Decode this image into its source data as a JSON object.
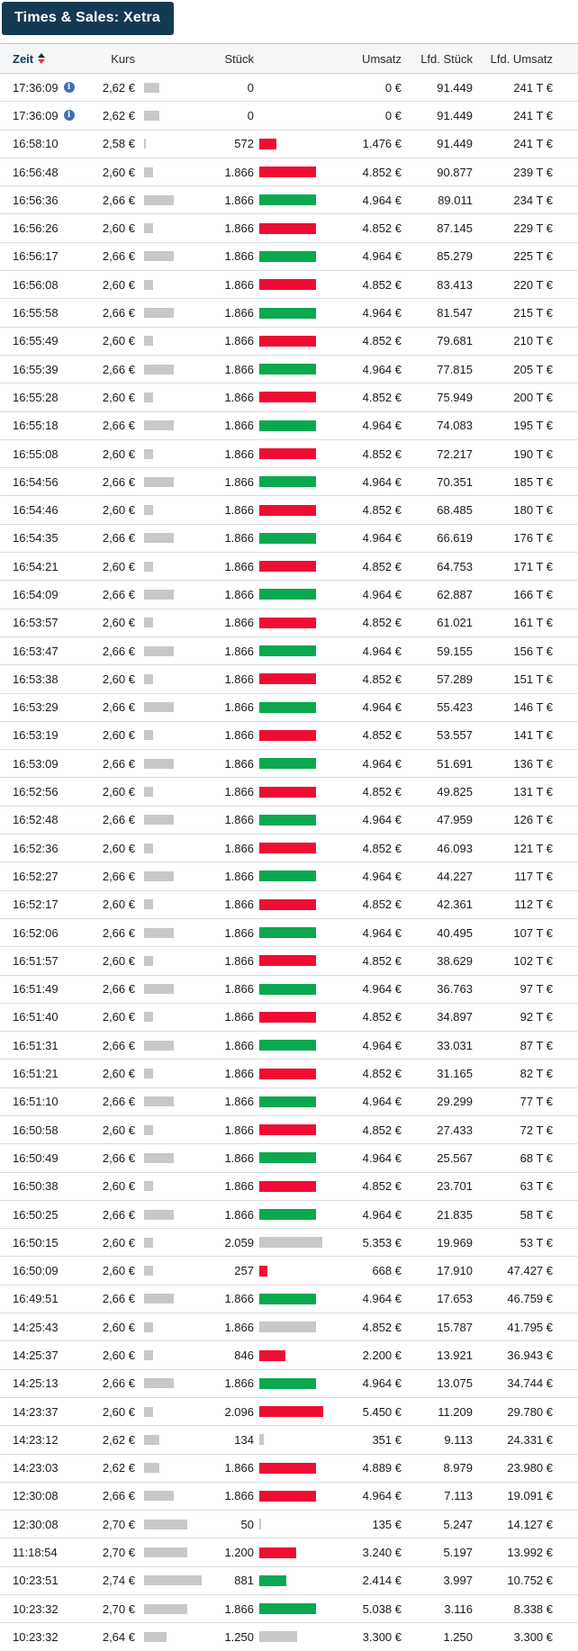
{
  "title": "Times & Sales: Xetra",
  "colors": {
    "navy": "#133a54",
    "bar-red": "#ee0d33",
    "bar-green": "#0aa84f",
    "bar-gray": "#c8c8c8",
    "info-blue": "#3d70b4",
    "sort-red": "#e8344e"
  },
  "table": {
    "columns": [
      "Zeit",
      "Kurs",
      "Stück",
      "Umsatz",
      "Lfd. Stück",
      "Lfd. Umsatz"
    ],
    "sorted_by": "Zeit",
    "price_scale": {
      "min": 2.58,
      "max": 2.74
    },
    "volume_scale_max": 2096
  },
  "rows": [
    {
      "zeit": "17:36:09",
      "info": true,
      "kurs": "2,62 €",
      "kurs_value": 2.62,
      "stueck": "0",
      "stueck_value": 0,
      "bar": null,
      "umsatz": "0 €",
      "lfd_stueck": "91.449",
      "lfd_umsatz": "241 T €"
    },
    {
      "zeit": "17:36:09",
      "info": true,
      "kurs": "2,62 €",
      "kurs_value": 2.62,
      "stueck": "0",
      "stueck_value": 0,
      "bar": null,
      "umsatz": "0 €",
      "lfd_stueck": "91.449",
      "lfd_umsatz": "241 T €"
    },
    {
      "zeit": "16:58:10",
      "info": false,
      "kurs": "2,58 €",
      "kurs_value": 2.58,
      "stueck": "572",
      "stueck_value": 572,
      "bar": "red",
      "umsatz": "1.476 €",
      "lfd_stueck": "91.449",
      "lfd_umsatz": "241 T €"
    },
    {
      "zeit": "16:56:48",
      "info": false,
      "kurs": "2,60 €",
      "kurs_value": 2.6,
      "stueck": "1.866",
      "stueck_value": 1866,
      "bar": "red",
      "umsatz": "4.852 €",
      "lfd_stueck": "90.877",
      "lfd_umsatz": "239 T €"
    },
    {
      "zeit": "16:56:36",
      "info": false,
      "kurs": "2,66 €",
      "kurs_value": 2.66,
      "stueck": "1.866",
      "stueck_value": 1866,
      "bar": "green",
      "umsatz": "4.964 €",
      "lfd_stueck": "89.011",
      "lfd_umsatz": "234 T €"
    },
    {
      "zeit": "16:56:26",
      "info": false,
      "kurs": "2,60 €",
      "kurs_value": 2.6,
      "stueck": "1.866",
      "stueck_value": 1866,
      "bar": "red",
      "umsatz": "4.852 €",
      "lfd_stueck": "87.145",
      "lfd_umsatz": "229 T €"
    },
    {
      "zeit": "16:56:17",
      "info": false,
      "kurs": "2,66 €",
      "kurs_value": 2.66,
      "stueck": "1.866",
      "stueck_value": 1866,
      "bar": "green",
      "umsatz": "4.964 €",
      "lfd_stueck": "85.279",
      "lfd_umsatz": "225 T €"
    },
    {
      "zeit": "16:56:08",
      "info": false,
      "kurs": "2,60 €",
      "kurs_value": 2.6,
      "stueck": "1.866",
      "stueck_value": 1866,
      "bar": "red",
      "umsatz": "4.852 €",
      "lfd_stueck": "83.413",
      "lfd_umsatz": "220 T €"
    },
    {
      "zeit": "16:55:58",
      "info": false,
      "kurs": "2,66 €",
      "kurs_value": 2.66,
      "stueck": "1.866",
      "stueck_value": 1866,
      "bar": "green",
      "umsatz": "4.964 €",
      "lfd_stueck": "81.547",
      "lfd_umsatz": "215 T €"
    },
    {
      "zeit": "16:55:49",
      "info": false,
      "kurs": "2,60 €",
      "kurs_value": 2.6,
      "stueck": "1.866",
      "stueck_value": 1866,
      "bar": "red",
      "umsatz": "4.852 €",
      "lfd_stueck": "79.681",
      "lfd_umsatz": "210 T €"
    },
    {
      "zeit": "16:55:39",
      "info": false,
      "kurs": "2,66 €",
      "kurs_value": 2.66,
      "stueck": "1.866",
      "stueck_value": 1866,
      "bar": "green",
      "umsatz": "4.964 €",
      "lfd_stueck": "77.815",
      "lfd_umsatz": "205 T €"
    },
    {
      "zeit": "16:55:28",
      "info": false,
      "kurs": "2,60 €",
      "kurs_value": 2.6,
      "stueck": "1.866",
      "stueck_value": 1866,
      "bar": "red",
      "umsatz": "4.852 €",
      "lfd_stueck": "75.949",
      "lfd_umsatz": "200 T €"
    },
    {
      "zeit": "16:55:18",
      "info": false,
      "kurs": "2,66 €",
      "kurs_value": 2.66,
      "stueck": "1.866",
      "stueck_value": 1866,
      "bar": "green",
      "umsatz": "4.964 €",
      "lfd_stueck": "74.083",
      "lfd_umsatz": "195 T €"
    },
    {
      "zeit": "16:55:08",
      "info": false,
      "kurs": "2,60 €",
      "kurs_value": 2.6,
      "stueck": "1.866",
      "stueck_value": 1866,
      "bar": "red",
      "umsatz": "4.852 €",
      "lfd_stueck": "72.217",
      "lfd_umsatz": "190 T €"
    },
    {
      "zeit": "16:54:56",
      "info": false,
      "kurs": "2,66 €",
      "kurs_value": 2.66,
      "stueck": "1.866",
      "stueck_value": 1866,
      "bar": "green",
      "umsatz": "4.964 €",
      "lfd_stueck": "70.351",
      "lfd_umsatz": "185 T €"
    },
    {
      "zeit": "16:54:46",
      "info": false,
      "kurs": "2,60 €",
      "kurs_value": 2.6,
      "stueck": "1.866",
      "stueck_value": 1866,
      "bar": "red",
      "umsatz": "4.852 €",
      "lfd_stueck": "68.485",
      "lfd_umsatz": "180 T €"
    },
    {
      "zeit": "16:54:35",
      "info": false,
      "kurs": "2,66 €",
      "kurs_value": 2.66,
      "stueck": "1.866",
      "stueck_value": 1866,
      "bar": "green",
      "umsatz": "4.964 €",
      "lfd_stueck": "66.619",
      "lfd_umsatz": "176 T €"
    },
    {
      "zeit": "16:54:21",
      "info": false,
      "kurs": "2,60 €",
      "kurs_value": 2.6,
      "stueck": "1.866",
      "stueck_value": 1866,
      "bar": "red",
      "umsatz": "4.852 €",
      "lfd_stueck": "64.753",
      "lfd_umsatz": "171 T €"
    },
    {
      "zeit": "16:54:09",
      "info": false,
      "kurs": "2,66 €",
      "kurs_value": 2.66,
      "stueck": "1.866",
      "stueck_value": 1866,
      "bar": "green",
      "umsatz": "4.964 €",
      "lfd_stueck": "62.887",
      "lfd_umsatz": "166 T €"
    },
    {
      "zeit": "16:53:57",
      "info": false,
      "kurs": "2,60 €",
      "kurs_value": 2.6,
      "stueck": "1.866",
      "stueck_value": 1866,
      "bar": "red",
      "umsatz": "4.852 €",
      "lfd_stueck": "61.021",
      "lfd_umsatz": "161 T €"
    },
    {
      "zeit": "16:53:47",
      "info": false,
      "kurs": "2,66 €",
      "kurs_value": 2.66,
      "stueck": "1.866",
      "stueck_value": 1866,
      "bar": "green",
      "umsatz": "4.964 €",
      "lfd_stueck": "59.155",
      "lfd_umsatz": "156 T €"
    },
    {
      "zeit": "16:53:38",
      "info": false,
      "kurs": "2,60 €",
      "kurs_value": 2.6,
      "stueck": "1.866",
      "stueck_value": 1866,
      "bar": "red",
      "umsatz": "4.852 €",
      "lfd_stueck": "57.289",
      "lfd_umsatz": "151 T €"
    },
    {
      "zeit": "16:53:29",
      "info": false,
      "kurs": "2,66 €",
      "kurs_value": 2.66,
      "stueck": "1.866",
      "stueck_value": 1866,
      "bar": "green",
      "umsatz": "4.964 €",
      "lfd_stueck": "55.423",
      "lfd_umsatz": "146 T €"
    },
    {
      "zeit": "16:53:19",
      "info": false,
      "kurs": "2,60 €",
      "kurs_value": 2.6,
      "stueck": "1.866",
      "stueck_value": 1866,
      "bar": "red",
      "umsatz": "4.852 €",
      "lfd_stueck": "53.557",
      "lfd_umsatz": "141 T €"
    },
    {
      "zeit": "16:53:09",
      "info": false,
      "kurs": "2,66 €",
      "kurs_value": 2.66,
      "stueck": "1.866",
      "stueck_value": 1866,
      "bar": "green",
      "umsatz": "4.964 €",
      "lfd_stueck": "51.691",
      "lfd_umsatz": "136 T €"
    },
    {
      "zeit": "16:52:56",
      "info": false,
      "kurs": "2,60 €",
      "kurs_value": 2.6,
      "stueck": "1.866",
      "stueck_value": 1866,
      "bar": "red",
      "umsatz": "4.852 €",
      "lfd_stueck": "49.825",
      "lfd_umsatz": "131 T €"
    },
    {
      "zeit": "16:52:48",
      "info": false,
      "kurs": "2,66 €",
      "kurs_value": 2.66,
      "stueck": "1.866",
      "stueck_value": 1866,
      "bar": "green",
      "umsatz": "4.964 €",
      "lfd_stueck": "47.959",
      "lfd_umsatz": "126 T €"
    },
    {
      "zeit": "16:52:36",
      "info": false,
      "kurs": "2,60 €",
      "kurs_value": 2.6,
      "stueck": "1.866",
      "stueck_value": 1866,
      "bar": "red",
      "umsatz": "4.852 €",
      "lfd_stueck": "46.093",
      "lfd_umsatz": "121 T €"
    },
    {
      "zeit": "16:52:27",
      "info": false,
      "kurs": "2,66 €",
      "kurs_value": 2.66,
      "stueck": "1.866",
      "stueck_value": 1866,
      "bar": "green",
      "umsatz": "4.964 €",
      "lfd_stueck": "44.227",
      "lfd_umsatz": "117 T €"
    },
    {
      "zeit": "16:52:17",
      "info": false,
      "kurs": "2,60 €",
      "kurs_value": 2.6,
      "stueck": "1.866",
      "stueck_value": 1866,
      "bar": "red",
      "umsatz": "4.852 €",
      "lfd_stueck": "42.361",
      "lfd_umsatz": "112 T €"
    },
    {
      "zeit": "16:52:06",
      "info": false,
      "kurs": "2,66 €",
      "kurs_value": 2.66,
      "stueck": "1.866",
      "stueck_value": 1866,
      "bar": "green",
      "umsatz": "4.964 €",
      "lfd_stueck": "40.495",
      "lfd_umsatz": "107 T €"
    },
    {
      "zeit": "16:51:57",
      "info": false,
      "kurs": "2,60 €",
      "kurs_value": 2.6,
      "stueck": "1.866",
      "stueck_value": 1866,
      "bar": "red",
      "umsatz": "4.852 €",
      "lfd_stueck": "38.629",
      "lfd_umsatz": "102 T €"
    },
    {
      "zeit": "16:51:49",
      "info": false,
      "kurs": "2,66 €",
      "kurs_value": 2.66,
      "stueck": "1.866",
      "stueck_value": 1866,
      "bar": "green",
      "umsatz": "4.964 €",
      "lfd_stueck": "36.763",
      "lfd_umsatz": "97 T €"
    },
    {
      "zeit": "16:51:40",
      "info": false,
      "kurs": "2,60 €",
      "kurs_value": 2.6,
      "stueck": "1.866",
      "stueck_value": 1866,
      "bar": "red",
      "umsatz": "4.852 €",
      "lfd_stueck": "34.897",
      "lfd_umsatz": "92 T €"
    },
    {
      "zeit": "16:51:31",
      "info": false,
      "kurs": "2,66 €",
      "kurs_value": 2.66,
      "stueck": "1.866",
      "stueck_value": 1866,
      "bar": "green",
      "umsatz": "4.964 €",
      "lfd_stueck": "33.031",
      "lfd_umsatz": "87 T €"
    },
    {
      "zeit": "16:51:21",
      "info": false,
      "kurs": "2,60 €",
      "kurs_value": 2.6,
      "stueck": "1.866",
      "stueck_value": 1866,
      "bar": "red",
      "umsatz": "4.852 €",
      "lfd_stueck": "31.165",
      "lfd_umsatz": "82 T €"
    },
    {
      "zeit": "16:51:10",
      "info": false,
      "kurs": "2,66 €",
      "kurs_value": 2.66,
      "stueck": "1.866",
      "stueck_value": 1866,
      "bar": "green",
      "umsatz": "4.964 €",
      "lfd_stueck": "29.299",
      "lfd_umsatz": "77 T €"
    },
    {
      "zeit": "16:50:58",
      "info": false,
      "kurs": "2,60 €",
      "kurs_value": 2.6,
      "stueck": "1.866",
      "stueck_value": 1866,
      "bar": "red",
      "umsatz": "4.852 €",
      "lfd_stueck": "27.433",
      "lfd_umsatz": "72 T €"
    },
    {
      "zeit": "16:50:49",
      "info": false,
      "kurs": "2,66 €",
      "kurs_value": 2.66,
      "stueck": "1.866",
      "stueck_value": 1866,
      "bar": "green",
      "umsatz": "4.964 €",
      "lfd_stueck": "25.567",
      "lfd_umsatz": "68 T €"
    },
    {
      "zeit": "16:50:38",
      "info": false,
      "kurs": "2,60 €",
      "kurs_value": 2.6,
      "stueck": "1.866",
      "stueck_value": 1866,
      "bar": "red",
      "umsatz": "4.852 €",
      "lfd_stueck": "23.701",
      "lfd_umsatz": "63 T €"
    },
    {
      "zeit": "16:50:25",
      "info": false,
      "kurs": "2,66 €",
      "kurs_value": 2.66,
      "stueck": "1.866",
      "stueck_value": 1866,
      "bar": "green",
      "umsatz": "4.964 €",
      "lfd_stueck": "21.835",
      "lfd_umsatz": "58 T €"
    },
    {
      "zeit": "16:50:15",
      "info": false,
      "kurs": "2,60 €",
      "kurs_value": 2.6,
      "stueck": "2.059",
      "stueck_value": 2059,
      "bar": "gray",
      "umsatz": "5.353 €",
      "lfd_stueck": "19.969",
      "lfd_umsatz": "53 T €"
    },
    {
      "zeit": "16:50:09",
      "info": false,
      "kurs": "2,60 €",
      "kurs_value": 2.6,
      "stueck": "257",
      "stueck_value": 257,
      "bar": "red",
      "umsatz": "668 €",
      "lfd_stueck": "17.910",
      "lfd_umsatz": "47.427 €"
    },
    {
      "zeit": "16:49:51",
      "info": false,
      "kurs": "2,66 €",
      "kurs_value": 2.66,
      "stueck": "1.866",
      "stueck_value": 1866,
      "bar": "green",
      "umsatz": "4.964 €",
      "lfd_stueck": "17.653",
      "lfd_umsatz": "46.759 €"
    },
    {
      "zeit": "14:25:43",
      "info": false,
      "kurs": "2,60 €",
      "kurs_value": 2.6,
      "stueck": "1.866",
      "stueck_value": 1866,
      "bar": "gray",
      "umsatz": "4.852 €",
      "lfd_stueck": "15.787",
      "lfd_umsatz": "41.795 €"
    },
    {
      "zeit": "14:25:37",
      "info": false,
      "kurs": "2,60 €",
      "kurs_value": 2.6,
      "stueck": "846",
      "stueck_value": 846,
      "bar": "red",
      "umsatz": "2.200 €",
      "lfd_stueck": "13.921",
      "lfd_umsatz": "36.943 €"
    },
    {
      "zeit": "14:25:13",
      "info": false,
      "kurs": "2,66 €",
      "kurs_value": 2.66,
      "stueck": "1.866",
      "stueck_value": 1866,
      "bar": "green",
      "umsatz": "4.964 €",
      "lfd_stueck": "13.075",
      "lfd_umsatz": "34.744 €"
    },
    {
      "zeit": "14:23:37",
      "info": false,
      "kurs": "2,60 €",
      "kurs_value": 2.6,
      "stueck": "2.096",
      "stueck_value": 2096,
      "bar": "red",
      "umsatz": "5.450 €",
      "lfd_stueck": "11.209",
      "lfd_umsatz": "29.780 €"
    },
    {
      "zeit": "14:23:12",
      "info": false,
      "kurs": "2,62 €",
      "kurs_value": 2.62,
      "stueck": "134",
      "stueck_value": 134,
      "bar": "gray",
      "umsatz": "351 €",
      "lfd_stueck": "9.113",
      "lfd_umsatz": "24.331 €"
    },
    {
      "zeit": "14:23:03",
      "info": false,
      "kurs": "2,62 €",
      "kurs_value": 2.62,
      "stueck": "1.866",
      "stueck_value": 1866,
      "bar": "red",
      "umsatz": "4.889 €",
      "lfd_stueck": "8.979",
      "lfd_umsatz": "23.980 €"
    },
    {
      "zeit": "12:30:08",
      "info": false,
      "kurs": "2,66 €",
      "kurs_value": 2.66,
      "stueck": "1.866",
      "stueck_value": 1866,
      "bar": "red",
      "umsatz": "4.964 €",
      "lfd_stueck": "7.113",
      "lfd_umsatz": "19.091 €"
    },
    {
      "zeit": "12:30:08",
      "info": false,
      "kurs": "2,70 €",
      "kurs_value": 2.7,
      "stueck": "50",
      "stueck_value": 50,
      "bar": "gray",
      "umsatz": "135 €",
      "lfd_stueck": "5.247",
      "lfd_umsatz": "14.127 €"
    },
    {
      "zeit": "11:18:54",
      "info": false,
      "kurs": "2,70 €",
      "kurs_value": 2.7,
      "stueck": "1.200",
      "stueck_value": 1200,
      "bar": "red",
      "umsatz": "3.240 €",
      "lfd_stueck": "5.197",
      "lfd_umsatz": "13.992 €"
    },
    {
      "zeit": "10:23:51",
      "info": false,
      "kurs": "2,74 €",
      "kurs_value": 2.74,
      "stueck": "881",
      "stueck_value": 881,
      "bar": "green",
      "umsatz": "2.414 €",
      "lfd_stueck": "3.997",
      "lfd_umsatz": "10.752 €"
    },
    {
      "zeit": "10:23:32",
      "info": false,
      "kurs": "2,70 €",
      "kurs_value": 2.7,
      "stueck": "1.866",
      "stueck_value": 1866,
      "bar": "green",
      "umsatz": "5.038 €",
      "lfd_stueck": "3.116",
      "lfd_umsatz": "8.338 €"
    },
    {
      "zeit": "10:23:32",
      "info": false,
      "kurs": "2,64 €",
      "kurs_value": 2.64,
      "stueck": "1.250",
      "stueck_value": 1250,
      "bar": "gray",
      "umsatz": "3.300 €",
      "lfd_stueck": "1.250",
      "lfd_umsatz": "3.300 €"
    }
  ]
}
